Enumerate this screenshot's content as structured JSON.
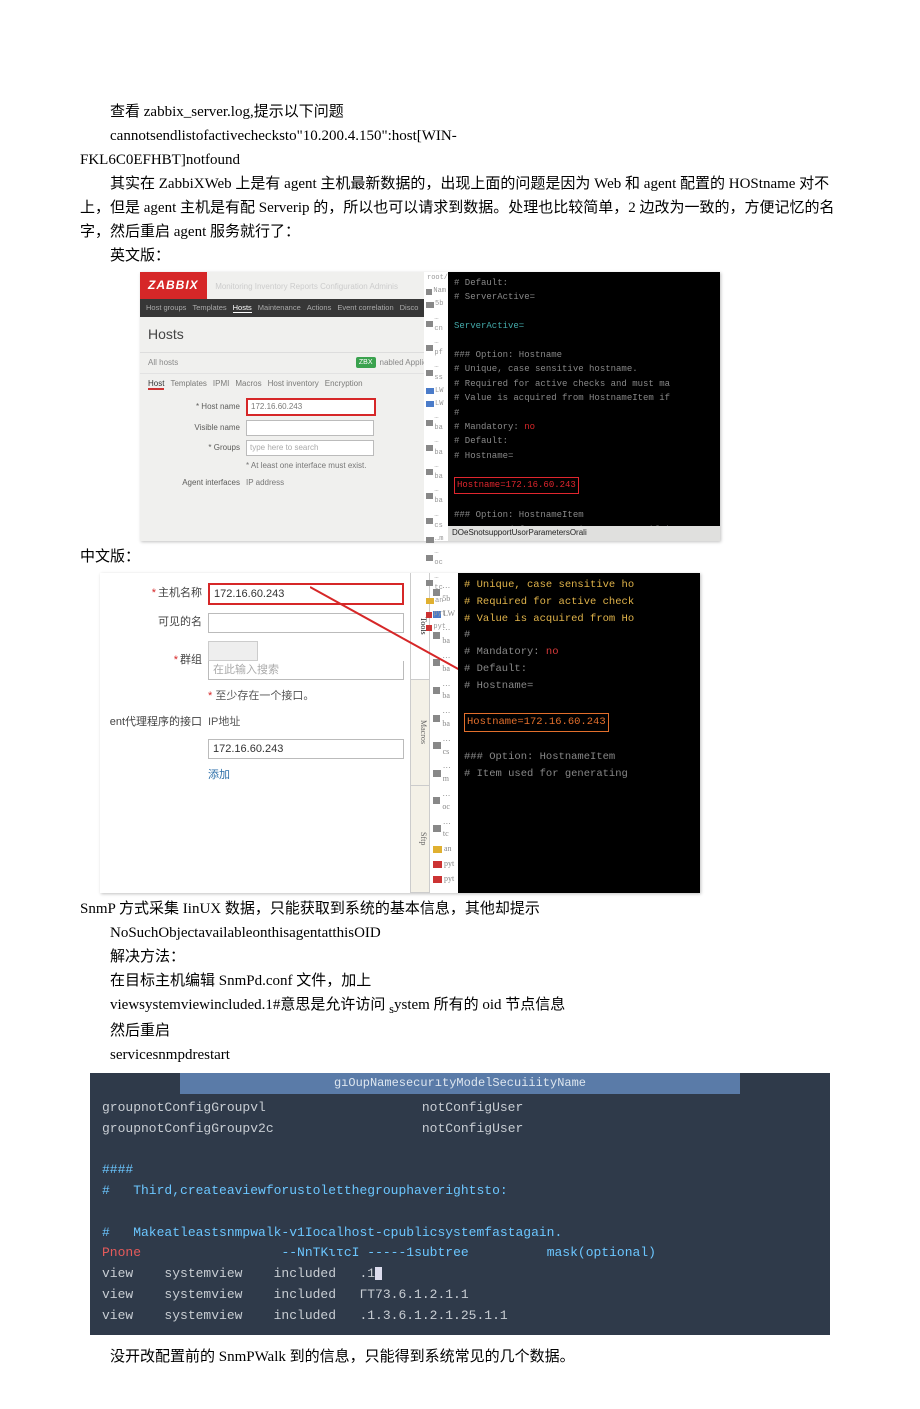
{
  "para1": "查看 zabbix_server.log,提示以下问题",
  "para2": "cannotsendlistofactivechecksto\"10.200.4.150\":host[WIN-",
  "para2b": "FKL6C0EFHBT]notfound",
  "para3": "其实在 ZabbiXWeb 上是有 agent 主机最新数据的，出现上面的问题是因为 Web 和 agent 配置的 HOStname 对不上，但是 agent 主机是有配 Serverip 的，所以也可以请求到数据。处理也比较简单，2 边改为一致的，方便记忆的名字，然后重启 agent 服务就行了：",
  "para4": "英文版：",
  "para5": "中文版：",
  "para6": "SnmP 方式采集 IinUX 数据，只能获取到系统的基本信息，其他却提示",
  "para7": "NoSuchObjectavailableonthisagentatthisOID",
  "para8": "解决方法：",
  "para9": "在目标主机编辑 SnmPd.conf 文件，加上",
  "para10_a": "viewsystemviewincluded.1#意思是允许访问 ",
  "para10_sub": "s",
  "para10_b": "ystem 所有的 oid 节点信息",
  "para11": "然后重启",
  "para12": "servicesnmpdrestart",
  "para13": "没开改配置前的 SnmPWalk 到的信息，只能得到系统常见的几个数据。",
  "shot1": {
    "logo": "ZABBIX",
    "topnav": "Monitoring   Inventory   Reports   Configuration   Adminis",
    "nav2": [
      "Host groups",
      "Templates",
      "Hosts",
      "Maintenance",
      "Actions",
      "Event correlation",
      "Disco"
    ],
    "title": "Hosts",
    "sub_left": "All hosts",
    "sub_right_badge": "ZBX",
    "sub_right": "nabled                                  Applicatio",
    "tabs": [
      "Host",
      "Templates",
      "IPMI",
      "Macros",
      "Host inventory",
      "Encryption"
    ],
    "form": {
      "hostname_label": "* Host name",
      "hostname_value": "172.16.60.243",
      "visname_label": "Visible name",
      "groups_label": "* Groups",
      "groups_placeholder": "type here to search",
      "atleast": "* At least one interface must exist.",
      "agent_if": "Agent interfaces",
      "ip_addr": "IP address"
    },
    "vtabs": [
      "Session",
      "Tools",
      "Macros",
      "Sftp"
    ],
    "right_lines": [
      "# Default:",
      "# ServerActive=",
      "",
      "ServerActive=",
      "",
      "### Option: Hostname",
      "#       Unique, case sensitive hostname.",
      "#       Required for active checks and must ma",
      "#       Value is acquired from HostnameItem if",
      "#",
      "# Mandatory: ",
      "# Default:",
      "# Hostname=",
      "",
      "",
      "",
      "### Option: HostnameItem",
      "#       Item used for generating Hostname if i"
    ],
    "right_hostname": "Hostname=172.16.60.243",
    "right_no": "no",
    "caption": "DOeSnotsupportUsorParametersOrali",
    "strip_labels": [
      "root/",
      "Nam",
      "5b",
      "…cn",
      "…pf",
      "…ss",
      "LW",
      "LW",
      "…ba",
      "…ba",
      "…ba",
      "…ba",
      "…cs",
      "…m",
      "…oc",
      "…tc",
      "an",
      "pyt",
      "pyt"
    ],
    "strip_colors": [
      "#5a5",
      "#888",
      "#888",
      "#888",
      "#888",
      "#888",
      "#4a7bc9",
      "#4a7bc9",
      "#888",
      "#888",
      "#888",
      "#888",
      "#888",
      "#888",
      "#888",
      "#888",
      "#e0b030",
      "#c33",
      "#c33"
    ]
  },
  "shot2": {
    "rows": {
      "hostname_label": "主机名称",
      "hostname_value": "172.16.60.243",
      "visname_label": "可见的名",
      "group_label": "群组",
      "group_placeholder": "在此输入搜索",
      "atleast": "至少存在一个接口。",
      "iface_label": "ent代理程序的接口",
      "ip_label": "IP地址",
      "ip_value": "172.16.60.243",
      "add": "添加"
    },
    "vtabs": [
      "Tools",
      "Macros",
      "Sftp"
    ],
    "icons_labels": [
      "…5b",
      "LW",
      "…ba",
      "…ba",
      "…ba",
      "…ba",
      "…cs",
      "…m",
      "…oc",
      "…tc",
      "an",
      "pyt",
      "pyt"
    ],
    "icons_colors": [
      "#888",
      "#4a7bc9",
      "#888",
      "#888",
      "#888",
      "#888",
      "#888",
      "#888",
      "#888",
      "#888",
      "#e0b030",
      "#c33",
      "#c33"
    ],
    "right_lines": [
      "#       Unique, case sensitive ho",
      "#       Required for active check",
      "#       Value is acquired from Ho",
      "#",
      "# Mandatory: ",
      "# Default:",
      "# Hostname=",
      "",
      "",
      "",
      "### Option: HostnameItem",
      "#       Item used for generating"
    ],
    "right_no": "no",
    "right_hostname": "Hostname=172.16.60.243"
  },
  "term": {
    "header": "gıOupNamesecurıtyModelSecuiiityName",
    "line1a": "groupnotConfigGroupvl",
    "line1b": "notConfigUser",
    "line2a": "groupnotConfigGroupv2c",
    "line2b": "notConfigUser",
    "hash": "####",
    "comment1": "#   Third,createaviewforustoletthegrouphaverightsto:",
    "comment2": "#   Makeatleastsnmpwalk-v1Iocalhost-cpublicsystemfastagain.",
    "pn_label": "Pnone",
    "pn_mid": "--ΝnTΚιτcӀ -----1subtree",
    "pn_mask": "mask(optional)",
    "v1a": "view    systemview    included   .1",
    "v2a": "view    systemview    included   ΓT73.6.1.2.1.1",
    "v3a": "view    systemview    included   .1.3.6.1.2.1.25.1.1"
  }
}
